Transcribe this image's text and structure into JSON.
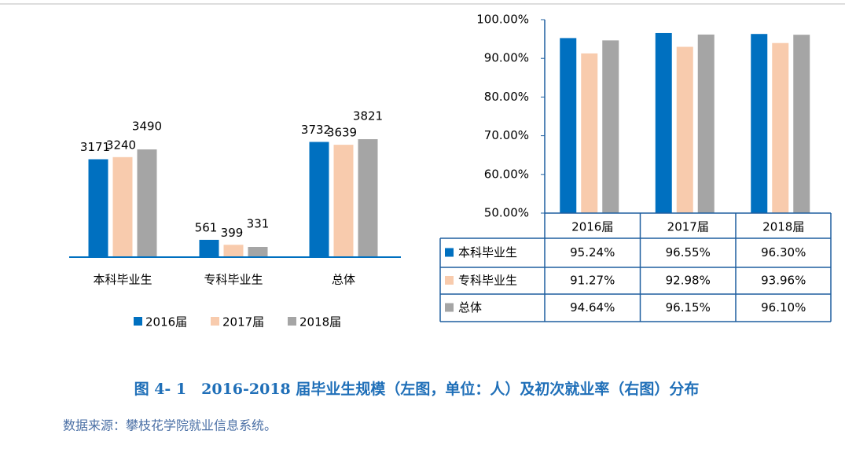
{
  "chart_data": [
    {
      "type": "bar",
      "categories": [
        "本科毕业生",
        "专科毕业生",
        "总体"
      ],
      "series": [
        {
          "name": "2016届",
          "color": "#0070c0",
          "values": [
            3171,
            561,
            3732
          ]
        },
        {
          "name": "2017届",
          "color": "#f8cbad",
          "values": [
            3240,
            399,
            3639
          ]
        },
        {
          "name": "2018届",
          "color": "#a5a5a5",
          "values": [
            3490,
            331,
            3821
          ]
        }
      ],
      "legend": "bottom"
    },
    {
      "type": "bar",
      "categories": [
        "2016届",
        "2017届",
        "2018届"
      ],
      "series": [
        {
          "name": "本科毕业生",
          "color": "#0070c0",
          "values": [
            95.24,
            96.55,
            96.3
          ],
          "value_labels": [
            "95.24%",
            "96.55%",
            "96.30%"
          ]
        },
        {
          "name": "专科毕业生",
          "color": "#f8cbad",
          "values": [
            91.27,
            92.98,
            93.96
          ],
          "value_labels": [
            "91.27%",
            "92.98%",
            "93.96%"
          ]
        },
        {
          "name": "总体",
          "color": "#a5a5a5",
          "values": [
            94.64,
            96.15,
            96.1
          ],
          "value_labels": [
            "94.64%",
            "96.15%",
            "96.10%"
          ]
        }
      ],
      "ylim": [
        50,
        100
      ],
      "yticks": [
        {
          "value": 50,
          "label": "50.00%"
        },
        {
          "value": 60,
          "label": "60.00%"
        },
        {
          "value": 70,
          "label": "70.00%"
        },
        {
          "value": 80,
          "label": "80.00%"
        },
        {
          "value": 90,
          "label": "90.00%"
        },
        {
          "value": 100,
          "label": "100.00%"
        }
      ],
      "data_table": true
    }
  ],
  "caption": "图 4- 1　2016-2018 届毕业生规模（左图，单位：人）及初次就业率（右图）分布",
  "source": "数据来源：攀枝花学院就业信息系统。"
}
